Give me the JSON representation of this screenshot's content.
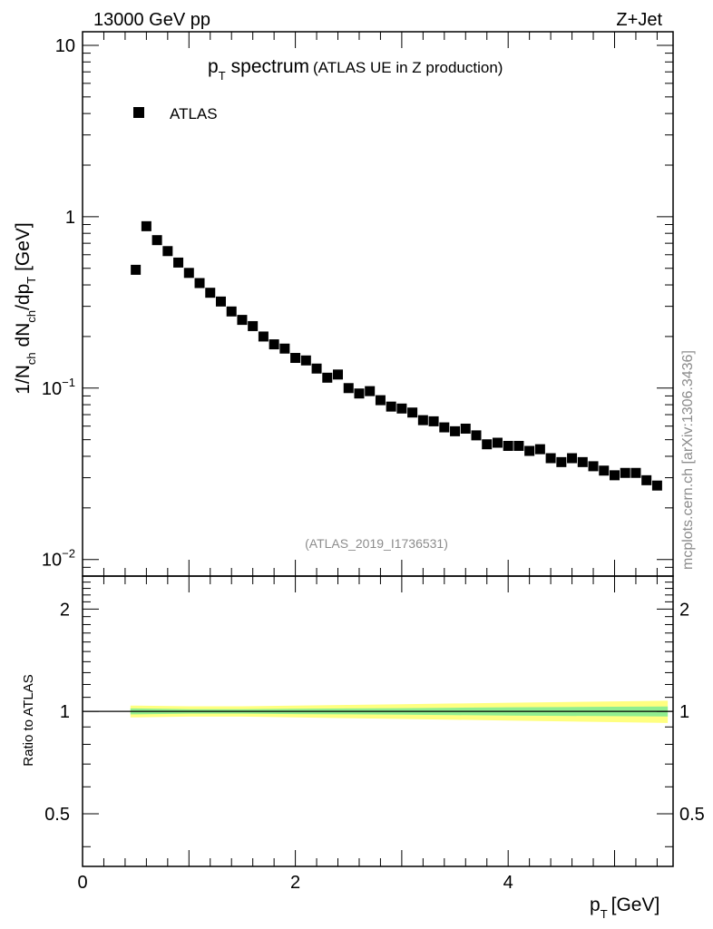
{
  "header": {
    "left": "13000 GeV pp",
    "right": "Z+Jet"
  },
  "side_label": "mcplots.cern.ch [arXiv:1306.3436]",
  "watermark": "(ATLAS_2019_I1736531)",
  "chart_data": [
    {
      "type": "scatter",
      "title": "pT spectrum (ATLAS UE in Z production)",
      "title_parts": {
        "main": "spectrum",
        "sub": "(ATLAS UE in Z production)"
      },
      "xlabel": "pT [GeV]",
      "ylabel": "1/Nch dNch/dpT [GeV]",
      "xlim": [
        0,
        5.55
      ],
      "ylim": [
        0.008,
        12
      ],
      "yscale": "log",
      "yticks": [
        {
          "value": 10,
          "label": "10"
        },
        {
          "value": 1,
          "label": "1"
        },
        {
          "value": 0.1,
          "label": "10",
          "exp": "−1"
        },
        {
          "value": 0.01,
          "label": "10",
          "exp": "−2"
        }
      ],
      "legend": {
        "position": "top-left",
        "entries": [
          "ATLAS"
        ]
      },
      "series": [
        {
          "name": "ATLAS",
          "color": "#000000",
          "marker": "square",
          "x": [
            0.5,
            0.6,
            0.7,
            0.8,
            0.9,
            1.0,
            1.1,
            1.2,
            1.3,
            1.4,
            1.5,
            1.6,
            1.7,
            1.8,
            1.9,
            2.0,
            2.1,
            2.2,
            2.3,
            2.4,
            2.5,
            2.6,
            2.7,
            2.8,
            2.9,
            3.0,
            3.1,
            3.2,
            3.3,
            3.4,
            3.5,
            3.6,
            3.7,
            3.8,
            3.9,
            4.0,
            4.1,
            4.2,
            4.3,
            4.4,
            4.5,
            4.6,
            4.7,
            4.8,
            4.9,
            5.0,
            5.1,
            5.2,
            5.3,
            5.4
          ],
          "y": [
            0.49,
            0.88,
            0.73,
            0.63,
            0.54,
            0.47,
            0.41,
            0.36,
            0.32,
            0.28,
            0.25,
            0.23,
            0.2,
            0.18,
            0.17,
            0.15,
            0.145,
            0.13,
            0.115,
            0.12,
            0.1,
            0.093,
            0.096,
            0.085,
            0.078,
            0.076,
            0.072,
            0.065,
            0.064,
            0.059,
            0.056,
            0.058,
            0.053,
            0.047,
            0.048,
            0.046,
            0.046,
            0.043,
            0.044,
            0.039,
            0.037,
            0.039,
            0.037,
            0.035,
            0.033,
            0.031,
            0.032,
            0.032,
            0.029,
            0.027
          ]
        }
      ]
    },
    {
      "type": "line",
      "xlabel": "pT [GeV]",
      "ylabel": "Ratio to ATLAS",
      "xlim": [
        0,
        5.55
      ],
      "ylim": [
        0.35,
        2.5
      ],
      "yscale": "log",
      "xticks": [
        0,
        2,
        4
      ],
      "yticks": [
        {
          "value": 2,
          "label": "2"
        },
        {
          "value": 1,
          "label": "1"
        },
        {
          "value": 0.5,
          "label": "0.5"
        }
      ],
      "reference": {
        "value": 1,
        "color": "#000000"
      },
      "bands": [
        {
          "color": "#ffff80",
          "x": [
            0.45,
            0.5,
            1.0,
            1.5,
            2.0,
            2.5,
            3.0,
            3.5,
            4.0,
            4.5,
            5.0,
            5.5
          ],
          "upper": [
            1.04,
            1.04,
            1.035,
            1.035,
            1.04,
            1.045,
            1.05,
            1.055,
            1.06,
            1.065,
            1.07,
            1.075
          ],
          "lower": [
            0.96,
            0.96,
            0.965,
            0.965,
            0.96,
            0.955,
            0.95,
            0.945,
            0.94,
            0.935,
            0.93,
            0.925
          ]
        },
        {
          "color": "#90ee90",
          "x": [
            0.45,
            0.5,
            1.0,
            1.5,
            2.0,
            2.5,
            3.0,
            3.5,
            4.0,
            4.5,
            5.0,
            5.5
          ],
          "upper": [
            1.02,
            1.02,
            1.015,
            1.015,
            1.018,
            1.02,
            1.022,
            1.025,
            1.028,
            1.03,
            1.032,
            1.034
          ],
          "lower": [
            0.98,
            0.98,
            0.985,
            0.985,
            0.982,
            0.98,
            0.978,
            0.975,
            0.972,
            0.97,
            0.968,
            0.966
          ]
        }
      ]
    }
  ]
}
